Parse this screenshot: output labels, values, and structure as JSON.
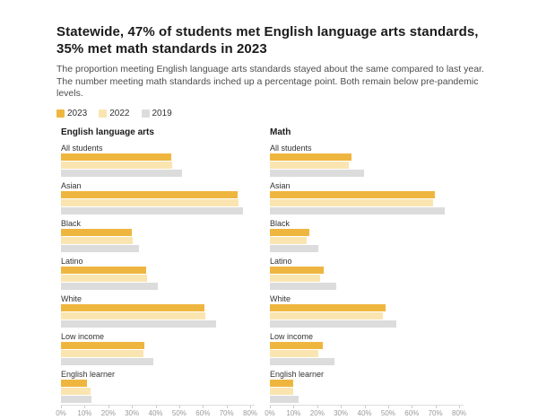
{
  "header": {
    "title": "Statewide, 47% of students met English language arts standards, 35% met math standards in 2023",
    "subtitle": "The proportion meeting English language arts standards stayed about the same compared to last year. The number meeting math standards inched up a percentage point. Both remain below pre-pandemic levels."
  },
  "legend": [
    {
      "label": "2023",
      "color": "#EFB63F"
    },
    {
      "label": "2022",
      "color": "#FAE5B1"
    },
    {
      "label": "2019",
      "color": "#DCDCDC"
    }
  ],
  "colors": {
    "year_2023": "#EFB63F",
    "year_2022": "#FAE5B1",
    "year_2019": "#DCDCDC",
    "axis_line": "#dddddd",
    "axis_text": "#9a9a9a",
    "title_text": "#1a1a1a",
    "body_text": "#4d4d4d"
  },
  "chart_data": [
    {
      "type": "bar",
      "orientation": "horizontal",
      "title": "English language arts",
      "categories": [
        "All students",
        "Asian",
        "Black",
        "Latino",
        "White",
        "Low income",
        "English learner"
      ],
      "series": [
        {
          "name": "2023",
          "color": "#EFB63F",
          "values": [
            46.7,
            74.5,
            29.9,
            36.0,
            60.6,
            35.2,
            10.9
          ]
        },
        {
          "name": "2022",
          "color": "#FAE5B1",
          "values": [
            47.1,
            75.1,
            30.3,
            36.2,
            61.2,
            34.9,
            12.4
          ]
        },
        {
          "name": "2019",
          "color": "#DCDCDC",
          "values": [
            51.1,
            77.0,
            33.0,
            40.8,
            65.6,
            39.2,
            12.8
          ]
        }
      ],
      "x_axis": {
        "min": 0,
        "max": 80,
        "ticks": [
          "0%",
          "10%",
          "20%",
          "30%",
          "40%",
          "50%",
          "60%",
          "70%",
          "80%"
        ]
      },
      "unit": "%",
      "grid": false,
      "legend_position": "top"
    },
    {
      "type": "bar",
      "orientation": "horizontal",
      "title": "Math",
      "categories": [
        "All students",
        "Asian",
        "Black",
        "Latino",
        "White",
        "Low income",
        "English learner"
      ],
      "series": [
        {
          "name": "2023",
          "color": "#EFB63F",
          "values": [
            34.6,
            69.7,
            16.5,
            22.7,
            48.9,
            22.5,
            9.9
          ]
        },
        {
          "name": "2022",
          "color": "#FAE5B1",
          "values": [
            33.4,
            68.9,
            15.5,
            21.3,
            47.7,
            20.6,
            9.7
          ]
        },
        {
          "name": "2019",
          "color": "#DCDCDC",
          "values": [
            39.7,
            74.0,
            20.5,
            28.0,
            53.6,
            27.2,
            12.1
          ]
        }
      ],
      "x_axis": {
        "min": 0,
        "max": 80,
        "ticks": [
          "0%",
          "10%",
          "20%",
          "30%",
          "40%",
          "50%",
          "60%",
          "70%",
          "80%"
        ]
      },
      "unit": "%",
      "grid": false,
      "legend_position": "top"
    }
  ]
}
